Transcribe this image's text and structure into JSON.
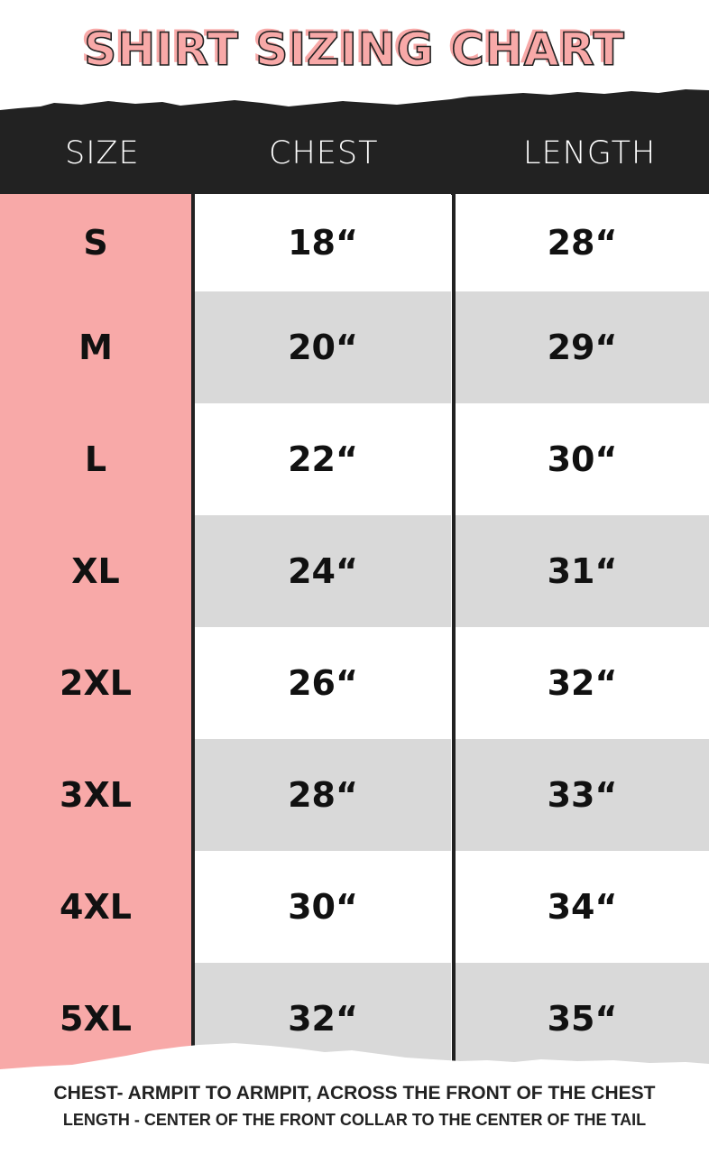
{
  "title": "SHIRT SIZING CHART",
  "colors": {
    "accent": "#f8a9a8",
    "header_bg": "#222222",
    "stripe": "#d9d9d9"
  },
  "headers": {
    "size": "SIZE",
    "chest": "CHEST",
    "length": "LENGTH"
  },
  "rows": [
    {
      "size": "S",
      "chest": "18“",
      "length": "28“"
    },
    {
      "size": "M",
      "chest": "20“",
      "length": "29“"
    },
    {
      "size": "L",
      "chest": "22“",
      "length": "30“"
    },
    {
      "size": "XL",
      "chest": "24“",
      "length": "31“"
    },
    {
      "size": "2XL",
      "chest": "26“",
      "length": "32“"
    },
    {
      "size": "3XL",
      "chest": "28“",
      "length": "33“"
    },
    {
      "size": "4XL",
      "chest": "30“",
      "length": "34“"
    },
    {
      "size": "5XL",
      "chest": "32“",
      "length": "35“"
    }
  ],
  "notes": {
    "chest": "CHEST- ARMPIT TO ARMPIT, ACROSS THE FRONT OF THE CHEST",
    "length": "LENGTH - CENTER OF THE FRONT COLLAR TO THE CENTER OF THE TAIL"
  }
}
